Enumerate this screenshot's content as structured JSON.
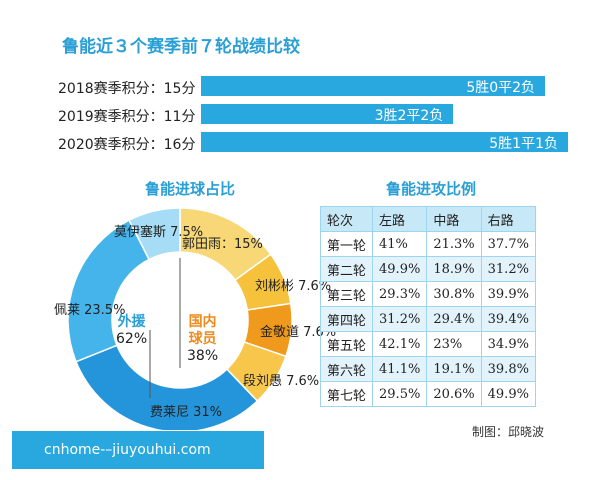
{
  "chart_data": [
    {
      "type": "bar",
      "title": "鲁能近３个赛季前７轮战绩比较",
      "categories": [
        "2018赛季积分：15分",
        "2019赛季积分：11分",
        "2020赛季积分：16分"
      ],
      "values": [
        15,
        11,
        16
      ],
      "bar_labels": [
        "5胜0平2负",
        "3胜2平2负",
        "5胜1平1负"
      ]
    },
    {
      "type": "pie",
      "title": "鲁能进球占比",
      "outer_labels": [
        "郭田雨：15%",
        "刘彬彬 7.6%",
        "金敬道 7.6%",
        "段刘愚 7.6%",
        "费莱尼 31%",
        "佩莱 23.5%",
        "莫伊塞斯 7.5%"
      ],
      "slices": [
        {
          "label": "郭田雨",
          "value": 15,
          "color": "#f8d876"
        },
        {
          "label": "刘彬彬",
          "value": 7.6,
          "color": "#f6c23c"
        },
        {
          "label": "金敬道",
          "value": 7.6,
          "color": "#ef9a1d"
        },
        {
          "label": "段刘愚",
          "value": 7.6,
          "color": "#f7c64a"
        },
        {
          "label": "费莱尼",
          "value": 31,
          "color": "#2595db"
        },
        {
          "label": "佩莱",
          "value": 23.5,
          "color": "#45b4ea"
        },
        {
          "label": "莫伊塞斯",
          "value": 7.5,
          "color": "#a6dcf5"
        }
      ],
      "inner": [
        {
          "label": "外援",
          "value": "62%",
          "color": "#2a9fd6"
        },
        {
          "label": "国内球员",
          "label_lines": [
            "国内",
            "球员"
          ],
          "value": "38%",
          "color": "#ef8a1d"
        }
      ]
    },
    {
      "type": "table",
      "title": "鲁能进攻比例",
      "columns": [
        "轮次",
        "左路",
        "中路",
        "右路"
      ],
      "rows": [
        [
          "第一轮",
          "41%",
          "21.3%",
          "37.7%"
        ],
        [
          "第二轮",
          "49.9%",
          "18.9%",
          "31.2%"
        ],
        [
          "第三轮",
          "29.3%",
          "30.8%",
          "39.9%"
        ],
        [
          "第四轮",
          "31.2%",
          "29.4%",
          "39.4%"
        ],
        [
          "第五轮",
          "42.1%",
          "23%",
          "34.9%"
        ],
        [
          "第六轮",
          "41.1%",
          "19.1%",
          "39.8%"
        ],
        [
          "第七轮",
          "29.5%",
          "20.6%",
          "49.9%"
        ]
      ]
    }
  ],
  "credit": "制图：邱晓波",
  "watermark": "cnhome-–jiuyouhui.com"
}
